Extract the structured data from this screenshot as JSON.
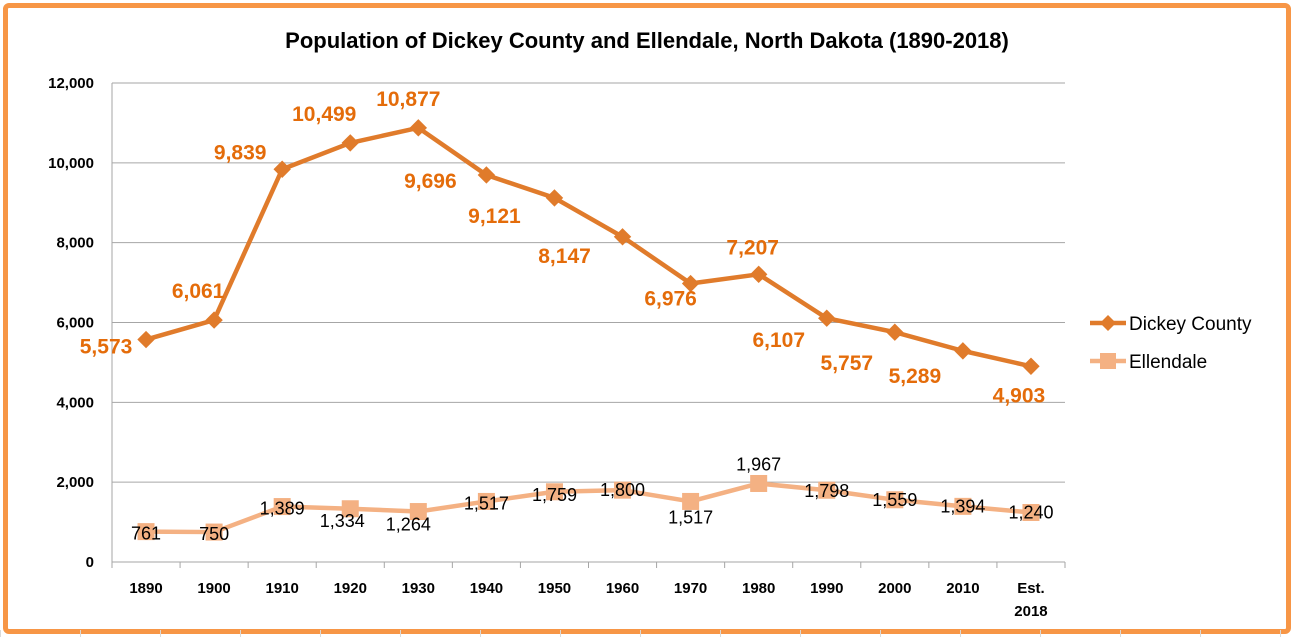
{
  "chart_data": {
    "type": "line",
    "title": "Population of Dickey County and Ellendale, North Dakota (1890-2018)",
    "xlabel": "",
    "ylabel": "",
    "categories": [
      "1890",
      "1900",
      "1910",
      "1920",
      "1930",
      "1940",
      "1950",
      "1960",
      "1970",
      "1980",
      "1990",
      "2000",
      "2010",
      "Est. 2018"
    ],
    "ylim": [
      0,
      12000
    ],
    "yticks": [
      "0",
      "2,000",
      "4,000",
      "6,000",
      "8,000",
      "10,000",
      "12,000"
    ],
    "grid": true,
    "legend": "right",
    "series": [
      {
        "name": "Dickey County",
        "color": "#e07b2b",
        "label_color": "#e46c0a",
        "marker": "diamond",
        "values": [
          5573,
          6061,
          9839,
          10499,
          10877,
          9696,
          9121,
          8147,
          6976,
          7207,
          6107,
          5757,
          5289,
          4903
        ],
        "labels": [
          "5,573",
          "6,061",
          "9,839",
          "10,499",
          "10,877",
          "9,696",
          "9,121",
          "8,147",
          "6,976",
          "7,207",
          "6,107",
          "5,757",
          "5,289",
          "4,903"
        ]
      },
      {
        "name": "Ellendale",
        "color": "#f4b183",
        "label_color": "#000000",
        "marker": "square",
        "values": [
          761,
          750,
          1389,
          1334,
          1264,
          1517,
          1759,
          1800,
          1517,
          1967,
          1798,
          1559,
          1394,
          1240
        ],
        "labels": [
          "761",
          "750",
          "1,389",
          "1,334",
          "1,264",
          "1,517",
          "1,759",
          "1,800",
          "1,517",
          "1,967",
          "1,798",
          "1,559",
          "1,394",
          "1,240"
        ]
      }
    ]
  }
}
